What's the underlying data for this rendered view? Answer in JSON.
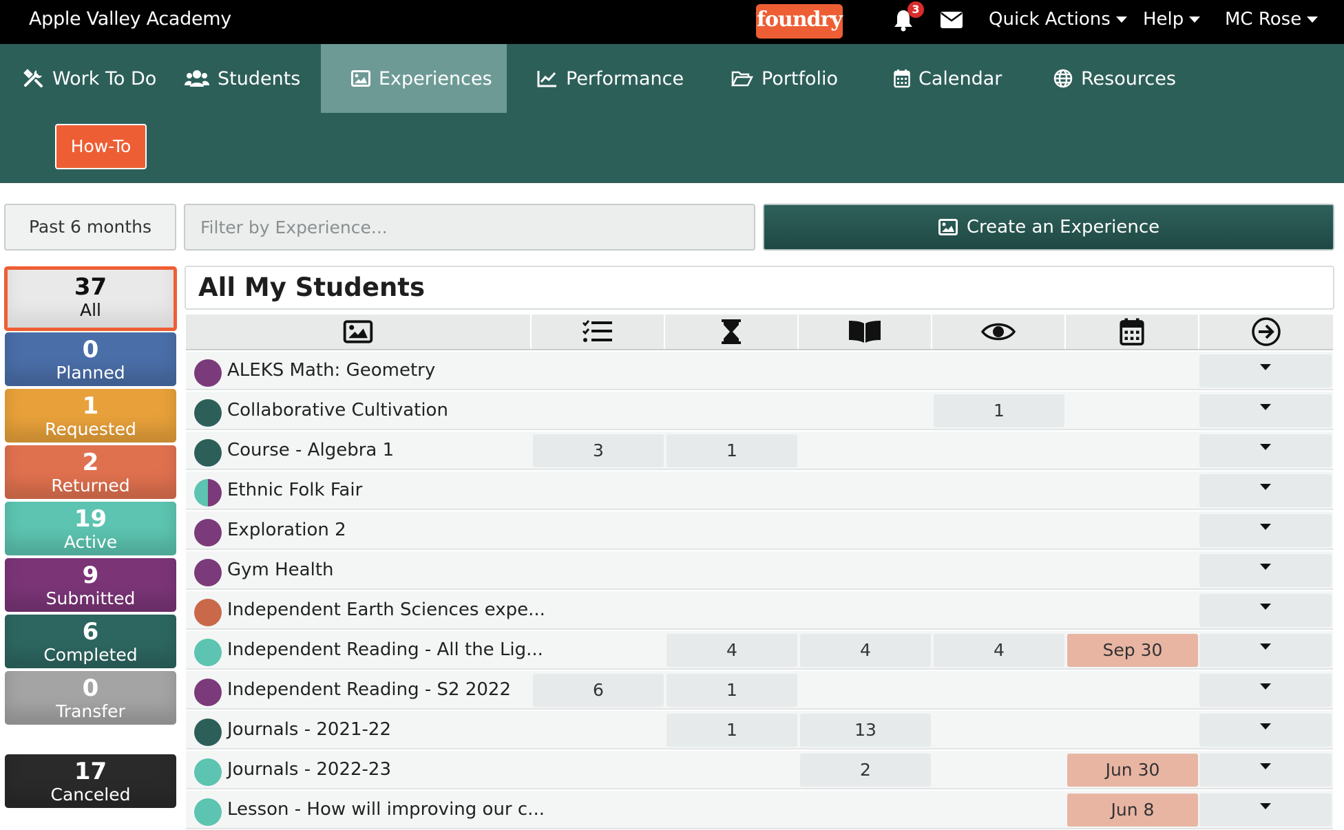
{
  "topbar": {
    "school": "Apple Valley Academy",
    "logo": "foundry",
    "notification_count": "3",
    "quick_actions": "Quick Actions",
    "help": "Help",
    "user": "MC Rose"
  },
  "nav": {
    "items": [
      {
        "label": "Work To Do",
        "icon": "tools-icon"
      },
      {
        "label": "Students",
        "icon": "users-icon"
      },
      {
        "label": "Experiences",
        "icon": "image-icon"
      },
      {
        "label": "Performance",
        "icon": "chart-line-icon"
      },
      {
        "label": "Portfolio",
        "icon": "folder-open-icon"
      },
      {
        "label": "Calendar",
        "icon": "calendar-icon"
      },
      {
        "label": "Resources",
        "icon": "globe-icon"
      }
    ],
    "active": "Experiences",
    "howto": "How-To"
  },
  "toolbar": {
    "period": "Past 6 months",
    "filter_placeholder": "Filter by Experience...",
    "create": "Create an Experience"
  },
  "stats": [
    {
      "count": "37",
      "label": "All",
      "color": "#e8e8e8"
    },
    {
      "count": "0",
      "label": "Planned",
      "color": "#4a6ea8"
    },
    {
      "count": "1",
      "label": "Requested",
      "color": "#e8a13a"
    },
    {
      "count": "2",
      "label": "Returned",
      "color": "#e0714f"
    },
    {
      "count": "19",
      "label": "Active",
      "color": "#5cc4b0"
    },
    {
      "count": "9",
      "label": "Submitted",
      "color": "#7b3577"
    },
    {
      "count": "6",
      "label": "Completed",
      "color": "#2d6660"
    },
    {
      "count": "0",
      "label": "Transfer",
      "color": "#a4a4a4"
    },
    {
      "count": "17",
      "label": "Canceled",
      "color": "#2a2a2a"
    }
  ],
  "panel": {
    "title": "All My Students",
    "columns": [
      "image-icon",
      "checklist-icon",
      "hourglass-icon",
      "book-open-icon",
      "eye-icon",
      "calendar-icon",
      "arrow-circle-right-icon"
    ],
    "rows": [
      {
        "name": "ALEKS Math: Geometry",
        "dot": "purple",
        "c1": "",
        "c2": "",
        "c3": "",
        "c4": "",
        "date": ""
      },
      {
        "name": "Collaborative Cultivation",
        "dot": "teal-dark",
        "c1": "",
        "c2": "",
        "c3": "",
        "c4": "1",
        "date": ""
      },
      {
        "name": "Course - Algebra 1",
        "dot": "teal-dark",
        "c1": "3",
        "c2": "1",
        "c3": "",
        "c4": "",
        "date": ""
      },
      {
        "name": "Ethnic Folk Fair",
        "dot": "split",
        "c1": "",
        "c2": "",
        "c3": "",
        "c4": "",
        "date": ""
      },
      {
        "name": "Exploration 2",
        "dot": "purple",
        "c1": "",
        "c2": "",
        "c3": "",
        "c4": "",
        "date": ""
      },
      {
        "name": "Gym Health",
        "dot": "purple",
        "c1": "",
        "c2": "",
        "c3": "",
        "c4": "",
        "date": ""
      },
      {
        "name": "Independent Earth Sciences expe...",
        "dot": "orange",
        "c1": "",
        "c2": "",
        "c3": "",
        "c4": "",
        "date": ""
      },
      {
        "name": "Independent Reading - All the Lig...",
        "dot": "teal-light",
        "c1": "",
        "c2": "4",
        "c3": "4",
        "c4": "4",
        "date": "Sep 30"
      },
      {
        "name": "Independent Reading - S2 2022",
        "dot": "purple",
        "c1": "6",
        "c2": "1",
        "c3": "",
        "c4": "",
        "date": ""
      },
      {
        "name": "Journals - 2021-22",
        "dot": "teal-dark",
        "c1": "",
        "c2": "1",
        "c3": "13",
        "c4": "",
        "date": ""
      },
      {
        "name": "Journals - 2022-23",
        "dot": "teal-light",
        "c1": "",
        "c2": "",
        "c3": "2",
        "c4": "",
        "date": "Jun 30"
      },
      {
        "name": "Lesson - How will improving our c...",
        "dot": "teal-light",
        "c1": "",
        "c2": "",
        "c3": "",
        "c4": "",
        "date": "Jun 8"
      }
    ]
  },
  "colors": {
    "purple": "#7b3a7a",
    "teal-dark": "#2d5f59",
    "teal-light": "#5cc4b0",
    "orange": "#c9694a",
    "nav_bg": "#2d5f59",
    "accent": "#ee5e34"
  }
}
